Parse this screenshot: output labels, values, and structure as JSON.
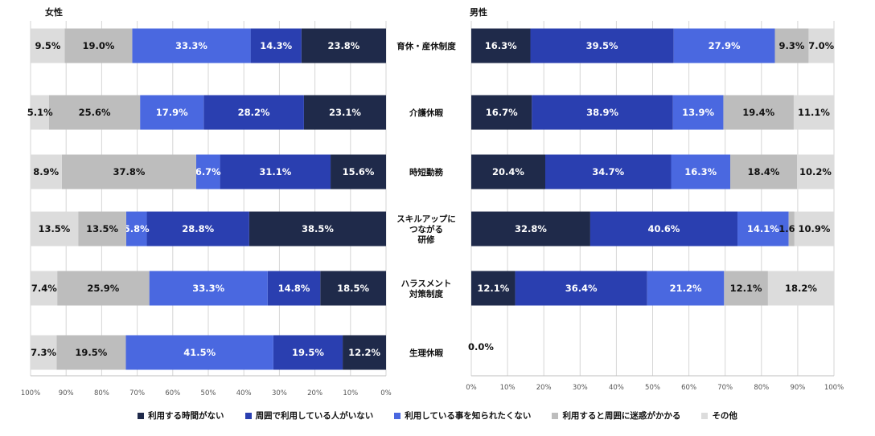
{
  "chart_data": {
    "type": "bar",
    "orientation": "horizontal-stacked-percent",
    "categories": [
      [
        "育休・産休制度"
      ],
      [
        "介護休暇"
      ],
      [
        "時短勤務"
      ],
      [
        "スキルアップに",
        "つながる",
        "研修"
      ],
      [
        "ハラスメント",
        "対策制度"
      ],
      [
        "生理休暇"
      ]
    ],
    "categories_text": [
      "育休・産休制度",
      "介護休暇",
      "時短勤務",
      "スキルアップにつながる研修",
      "ハラスメント対策制度",
      "生理休暇"
    ],
    "series": [
      {
        "name": "利用する時間がない",
        "color": "#1f2a4a"
      },
      {
        "name": "周囲で利用している人がいない",
        "color": "#2a3fb0"
      },
      {
        "name": "利用している事を知られたくない",
        "color": "#4a68e0"
      },
      {
        "name": "利用すると周囲に迷惑がかかる",
        "color": "#bdbdbd"
      },
      {
        "name": "その他",
        "color": "#dcdcdc"
      }
    ],
    "panels": [
      {
        "title": "女性",
        "direction": "right-to-left",
        "xlim": [
          0,
          100
        ],
        "values": [
          [
            23.8,
            14.3,
            33.3,
            19.0,
            9.5
          ],
          [
            23.1,
            28.2,
            17.9,
            25.6,
            5.1
          ],
          [
            15.6,
            31.1,
            6.7,
            37.8,
            8.9
          ],
          [
            38.5,
            28.8,
            5.8,
            13.5,
            13.5
          ],
          [
            18.5,
            14.8,
            33.3,
            25.9,
            7.4
          ],
          [
            12.2,
            19.5,
            41.5,
            19.5,
            7.3
          ]
        ]
      },
      {
        "title": "男性",
        "direction": "left-to-right",
        "xlim": [
          0,
          100
        ],
        "values": [
          [
            16.3,
            39.5,
            27.9,
            9.3,
            7.0
          ],
          [
            16.7,
            38.9,
            13.9,
            19.4,
            11.1
          ],
          [
            20.4,
            34.7,
            16.3,
            18.4,
            10.2
          ],
          [
            32.8,
            40.6,
            14.1,
            1.6,
            10.9
          ],
          [
            12.1,
            36.4,
            21.2,
            12.1,
            18.2
          ],
          []
        ],
        "annotations": [
          "0.0%"
        ]
      }
    ],
    "x_ticks_left": [
      "100%",
      "90%",
      "80%",
      "70%",
      "60%",
      "50%",
      "40%",
      "30%",
      "20%",
      "10%",
      "0%"
    ],
    "x_ticks_right": [
      "0%",
      "10%",
      "20%",
      "30%",
      "40%",
      "50%",
      "60%",
      "70%",
      "80%",
      "90%",
      "100%"
    ],
    "legend_position": "bottom"
  }
}
